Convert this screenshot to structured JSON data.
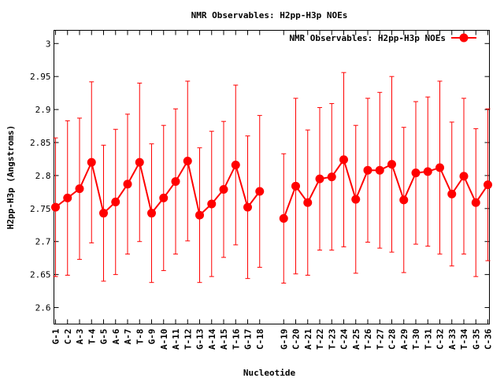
{
  "chart_data": {
    "type": "line",
    "title": "NMR Observables: H2pp-H3p NOEs",
    "xlabel": "Nucleotide",
    "ylabel": "H2pp-H3p (Angstroms)",
    "ylim": [
      2.575,
      3.02
    ],
    "yticks": [
      "2.6",
      "2.65",
      "2.7",
      "2.75",
      "2.8",
      "2.85",
      "2.9",
      "2.95",
      "3"
    ],
    "legend": {
      "label": "NMR Observables: H2pp-H3p NOEs",
      "placement": "top-right"
    },
    "grid": false,
    "color": "#ff0000",
    "segments": [
      {
        "categories": [
          "G-1",
          "C-2",
          "A-3",
          "T-4",
          "G-5",
          "A-6",
          "A-7",
          "T-8",
          "G-9",
          "A-10",
          "A-11",
          "T-12",
          "G-13",
          "A-14",
          "A-15",
          "T-16",
          "G-17",
          "C-18"
        ],
        "values": [
          2.752,
          2.766,
          2.78,
          2.82,
          2.743,
          2.76,
          2.787,
          2.82,
          2.743,
          2.766,
          2.791,
          2.822,
          2.74,
          2.757,
          2.779,
          2.816,
          2.752,
          2.776
        ],
        "errors": [
          0.105,
          0.117,
          0.107,
          0.122,
          0.103,
          0.11,
          0.106,
          0.12,
          0.105,
          0.11,
          0.11,
          0.121,
          0.102,
          0.11,
          0.103,
          0.121,
          0.108,
          0.115
        ]
      },
      {
        "categories": [
          "G-19",
          "C-20",
          "A-21",
          "T-22",
          "T-23",
          "C-24",
          "A-25",
          "T-26",
          "T-27",
          "C-28",
          "A-29",
          "T-30",
          "T-31",
          "C-32",
          "A-33",
          "T-34",
          "G-35",
          "C-36"
        ],
        "values": [
          2.735,
          2.784,
          2.759,
          2.795,
          2.798,
          2.824,
          2.764,
          2.808,
          2.808,
          2.817,
          2.763,
          2.804,
          2.806,
          2.812,
          2.772,
          2.799,
          2.759,
          2.786
        ],
        "errors": [
          0.098,
          0.133,
          0.11,
          0.108,
          0.111,
          0.132,
          0.112,
          0.109,
          0.118,
          0.133,
          0.11,
          0.108,
          0.113,
          0.131,
          0.109,
          0.118,
          0.112,
          0.115
        ]
      }
    ]
  }
}
